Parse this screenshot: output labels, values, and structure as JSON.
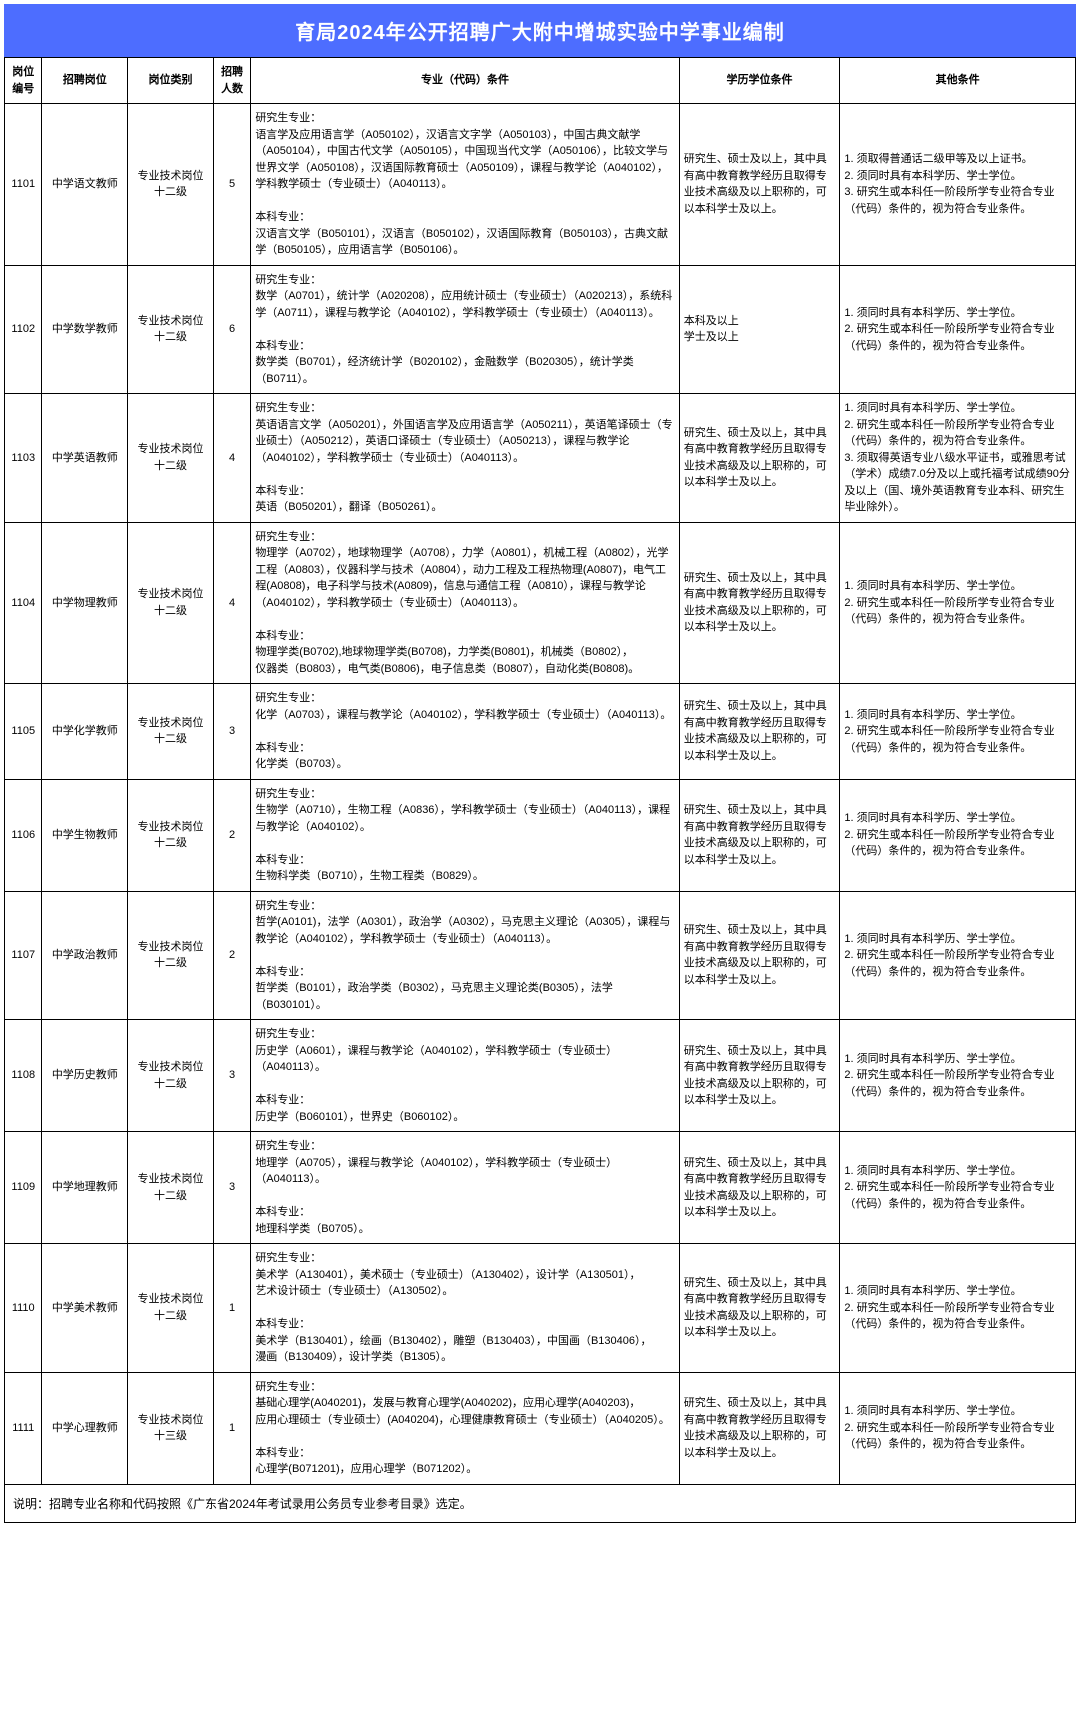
{
  "title": "育局2024年公开招聘广大附中增城实验中学事业编制",
  "headers": {
    "id": "岗位编号",
    "position": "招聘岗位",
    "category": "岗位类别",
    "count": "招聘人数",
    "major": "专业（代码）条件",
    "education": "学历学位条件",
    "other": "其他条件"
  },
  "rows": [
    {
      "id": "1101",
      "position": "中学语文教师",
      "category": "专业技术岗位十二级",
      "count": "5",
      "major": "研究生专业：\n语言学及应用语言学（A050102），汉语言文字学（A050103），中国古典文献学（A050104），中国古代文学（A050105），中国现当代文学（A050106），比较文学与世界文学（A050108），汉语国际教育硕士（A050109），课程与教学论（A040102），学科教学硕士（专业硕士）（A040113）。\n\n本科专业：\n汉语言文学（B050101），汉语言（B050102），汉语国际教育（B050103），古典文献学（B050105），应用语言学（B050106）。",
      "education": "研究生、硕士及以上，其中具有高中教育教学经历且取得专业技术高级及以上职称的，可以本科学士及以上。",
      "other": "1. 须取得普通话二级甲等及以上证书。\n2. 须同时具有本科学历、学士学位。\n3. 研究生或本科任一阶段所学专业符合专业（代码）条件的，视为符合专业条件。"
    },
    {
      "id": "1102",
      "position": "中学数学教师",
      "category": "专业技术岗位十二级",
      "count": "6",
      "major": "研究生专业：\n数学（A0701），统计学（A020208），应用统计硕士（专业硕士）（A020213），系统科学（A0711），课程与教学论（A040102），学科教学硕士（专业硕士）（A040113）。\n\n本科专业：\n数学类（B0701），经济统计学（B020102），金融数学（B020305），统计学类（B0711）。",
      "education": "本科及以上\n学士及以上",
      "other": "1. 须同时具有本科学历、学士学位。\n2. 研究生或本科任一阶段所学专业符合专业（代码）条件的，视为符合专业条件。"
    },
    {
      "id": "1103",
      "position": "中学英语教师",
      "category": "专业技术岗位十二级",
      "count": "4",
      "major": "研究生专业：\n英语语言文学（A050201），外国语言学及应用语言学（A050211），英语笔译硕士（专业硕士）（A050212），英语口译硕士（专业硕士）（A050213），课程与教学论（A040102），学科教学硕士（专业硕士）（A040113）。\n\n本科专业：\n英语（B050201），翻译（B050261）。",
      "education": "研究生、硕士及以上，其中具有高中教育教学经历且取得专业技术高级及以上职称的，可以本科学士及以上。",
      "other": "1. 须同时具有本科学历、学士学位。\n2. 研究生或本科任一阶段所学专业符合专业（代码）条件的，视为符合专业条件。\n3. 须取得英语专业八级水平证书，或雅思考试（学术）成绩7.0分及以上或托福考试成绩90分及以上（国、境外英语教育专业本科、研究生毕业除外）。"
    },
    {
      "id": "1104",
      "position": "中学物理教师",
      "category": "专业技术岗位十二级",
      "count": "4",
      "major": "研究生专业：\n物理学（A0702），地球物理学（A0708），力学（A0801），机械工程（A0802），光学工程（A0803），仪器科学与技术（A0804），动力工程及工程热物理(A0807)，电气工程(A0808)，电子科学与技术(A0809)，信息与通信工程（A0810），课程与教学论（A040102），学科教学硕士（专业硕士）（A040113）。\n\n本科专业：\n物理学类(B0702),地球物理学类(B0708)，力学类(B0801)，机械类（B0802），\n仪器类（B0803），电气类(B0806)，电子信息类（B0807），自动化类(B0808)。",
      "education": "研究生、硕士及以上，其中具有高中教育教学经历且取得专业技术高级及以上职称的，可以本科学士及以上。",
      "other": "1. 须同时具有本科学历、学士学位。\n2. 研究生或本科任一阶段所学专业符合专业（代码）条件的，视为符合专业条件。"
    },
    {
      "id": "1105",
      "position": "中学化学教师",
      "category": "专业技术岗位十二级",
      "count": "3",
      "major": "研究生专业：\n化学（A0703），课程与教学论（A040102），学科教学硕士（专业硕士）（A040113）。\n\n本科专业：\n化学类（B0703）。",
      "education": "研究生、硕士及以上，其中具有高中教育教学经历且取得专业技术高级及以上职称的，可以本科学士及以上。",
      "other": "1. 须同时具有本科学历、学士学位。\n2. 研究生或本科任一阶段所学专业符合专业（代码）条件的，视为符合专业条件。"
    },
    {
      "id": "1106",
      "position": "中学生物教师",
      "category": "专业技术岗位十二级",
      "count": "2",
      "major": "研究生专业：\n生物学（A0710），生物工程（A0836），学科教学硕士（专业硕士）（A040113），课程与教学论（A040102）。\n\n本科专业：\n生物科学类（B0710），生物工程类（B0829）。",
      "education": "研究生、硕士及以上，其中具有高中教育教学经历且取得专业技术高级及以上职称的，可以本科学士及以上。",
      "other": "1. 须同时具有本科学历、学士学位。\n2. 研究生或本科任一阶段所学专业符合专业（代码）条件的，视为符合专业条件。"
    },
    {
      "id": "1107",
      "position": "中学政治教师",
      "category": "专业技术岗位十二级",
      "count": "2",
      "major": "研究生专业：\n哲学(A0101)，法学（A0301），政治学（A0302），马克思主义理论（A0305），课程与教学论（A040102），学科教学硕士（专业硕士）（A040113）。\n\n本科专业：\n哲学类（B0101），政治学类（B0302），马克思主义理论类(B0305），法学（B030101）。",
      "education": "研究生、硕士及以上，其中具有高中教育教学经历且取得专业技术高级及以上职称的，可以本科学士及以上。",
      "other": "1. 须同时具有本科学历、学士学位。\n2. 研究生或本科任一阶段所学专业符合专业（代码）条件的，视为符合专业条件。"
    },
    {
      "id": "1108",
      "position": "中学历史教师",
      "category": "专业技术岗位十二级",
      "count": "3",
      "major": "研究生专业：\n历史学（A0601），课程与教学论（A040102），学科教学硕士（专业硕士）（A040113）。\n\n本科专业：\n历史学（B060101），世界史（B060102）。",
      "education": "研究生、硕士及以上，其中具有高中教育教学经历且取得专业技术高级及以上职称的，可以本科学士及以上。",
      "other": "1. 须同时具有本科学历、学士学位。\n2. 研究生或本科任一阶段所学专业符合专业（代码）条件的，视为符合专业条件。"
    },
    {
      "id": "1109",
      "position": "中学地理教师",
      "category": "专业技术岗位十二级",
      "count": "3",
      "major": "研究生专业：\n地理学（A0705），课程与教学论（A040102），学科教学硕士（专业硕士）（A040113）。\n\n本科专业：\n地理科学类（B0705）。",
      "education": "研究生、硕士及以上，其中具有高中教育教学经历且取得专业技术高级及以上职称的，可以本科学士及以上。",
      "other": "1. 须同时具有本科学历、学士学位。\n2. 研究生或本科任一阶段所学专业符合专业（代码）条件的，视为符合专业条件。"
    },
    {
      "id": "1110",
      "position": "中学美术教师",
      "category": "专业技术岗位十二级",
      "count": "1",
      "major": "研究生专业：\n美术学（A130401），美术硕士（专业硕士）（A130402），设计学（A130501），\n艺术设计硕士（专业硕士）（A130502）。\n\n本科专业：\n美术学（B130401），绘画（B130402），雕塑（B130403），中国画（B130406），\n漫画（B130409），设计学类（B1305）。",
      "education": "研究生、硕士及以上，其中具有高中教育教学经历且取得专业技术高级及以上职称的，可以本科学士及以上。",
      "other": "1. 须同时具有本科学历、学士学位。\n2. 研究生或本科任一阶段所学专业符合专业（代码）条件的，视为符合专业条件。"
    },
    {
      "id": "1111",
      "position": "中学心理教师",
      "category": "专业技术岗位十三级",
      "count": "1",
      "major": "研究生专业：\n基础心理学(A040201)，发展与教育心理学(A040202)，应用心理学(A040203)，\n应用心理硕士（专业硕士）(A040204)，心理健康教育硕士（专业硕士）（A040205）。\n\n本科专业：\n心理学(B071201)，应用心理学（B071202）。",
      "education": "研究生、硕士及以上，其中具有高中教育教学经历且取得专业技术高级及以上职称的，可以本科学士及以上。",
      "other": "1. 须同时具有本科学历、学士学位。\n2. 研究生或本科任一阶段所学专业符合专业（代码）条件的，视为符合专业条件。"
    }
  ],
  "note": "说明：招聘专业名称和代码按照《广东省2024年考试录用公务员专业参考目录》选定。"
}
